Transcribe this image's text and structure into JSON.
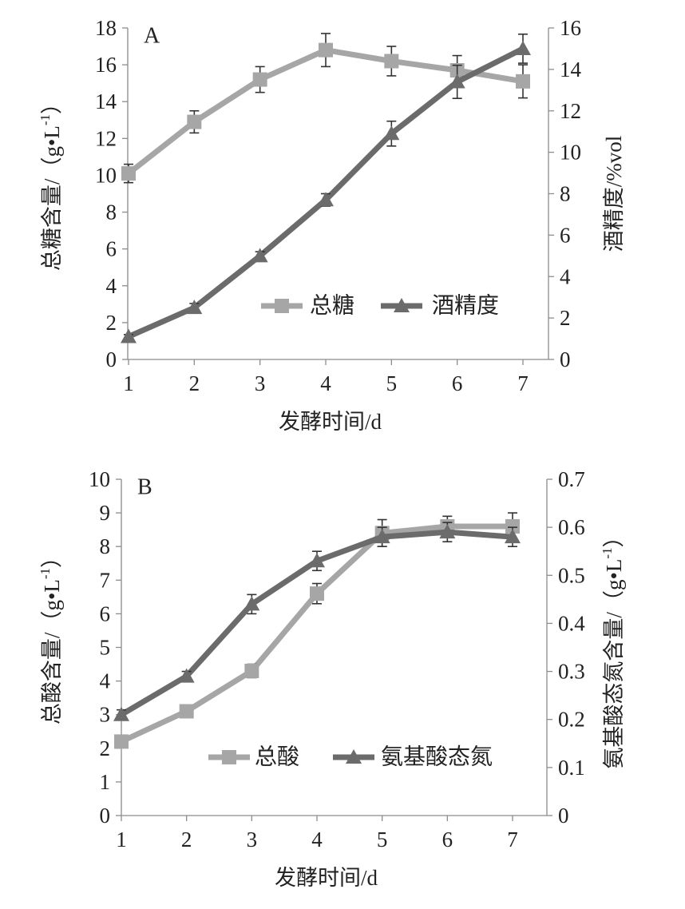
{
  "chart_data": [
    {
      "type": "line",
      "panel_label": "A",
      "x": [
        1,
        2,
        3,
        4,
        5,
        6,
        7
      ],
      "xlabel": "发酵时间/d",
      "ylabel_left": "总糖含量/（g•L-1）",
      "ylabel_right": "酒精度/%vol",
      "ylim_left": [
        0,
        18
      ],
      "ylim_right": [
        0,
        16
      ],
      "yticks_left": [
        0,
        2,
        4,
        6,
        8,
        10,
        12,
        14,
        16,
        18
      ],
      "yticks_right": [
        0,
        2,
        4,
        6,
        8,
        10,
        12,
        14,
        16
      ],
      "legend_position": "lower-right",
      "grid": false,
      "series": [
        {
          "name": "总糖",
          "axis": "left",
          "marker": "square",
          "color": "#a6a6a6",
          "values": [
            10.1,
            12.9,
            15.2,
            16.8,
            16.2,
            15.7,
            15.1
          ],
          "error": [
            0.5,
            0.6,
            0.7,
            0.9,
            0.8,
            0.8,
            0.9
          ]
        },
        {
          "name": "酒精度",
          "axis": "right",
          "marker": "triangle",
          "color": "#6b6b6b",
          "values": [
            1.1,
            2.5,
            5.0,
            7.7,
            10.9,
            13.4,
            15.0
          ],
          "error": [
            0.1,
            0.2,
            0.2,
            0.3,
            0.6,
            0.8,
            0.7
          ]
        }
      ]
    },
    {
      "type": "line",
      "panel_label": "B",
      "x": [
        1,
        2,
        3,
        4,
        5,
        6,
        7
      ],
      "xlabel": "发酵时间/d",
      "ylabel_left": "总酸含量/（g•L-1）",
      "ylabel_right": "氨基酸态氮含量/（g•L-1）",
      "ylim_left": [
        0,
        10
      ],
      "ylim_right": [
        0,
        0.7
      ],
      "yticks_left": [
        0,
        1,
        2,
        3,
        4,
        5,
        6,
        7,
        8,
        9,
        10
      ],
      "yticks_right": [
        0,
        0.1,
        0.2,
        0.3,
        0.4,
        0.5,
        0.6,
        0.7
      ],
      "legend_position": "lower-right",
      "grid": false,
      "series": [
        {
          "name": "总酸",
          "axis": "left",
          "marker": "square",
          "color": "#a6a6a6",
          "values": [
            2.2,
            3.1,
            4.3,
            6.6,
            8.4,
            8.6,
            8.6
          ],
          "error": [
            0.1,
            0.1,
            0.2,
            0.3,
            0.4,
            0.3,
            0.4
          ]
        },
        {
          "name": "氨基酸态氮",
          "axis": "right",
          "marker": "triangle",
          "color": "#6b6b6b",
          "values": [
            0.21,
            0.29,
            0.44,
            0.53,
            0.58,
            0.59,
            0.58
          ],
          "error": [
            0.01,
            0.01,
            0.02,
            0.02,
            0.02,
            0.02,
            0.02
          ]
        }
      ]
    }
  ]
}
